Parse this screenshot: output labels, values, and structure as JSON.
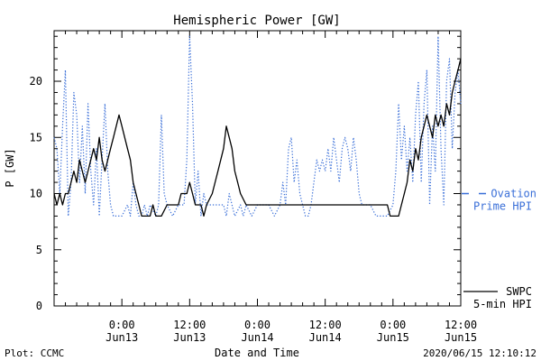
{
  "chart_data": {
    "type": "line",
    "title": "Hemispheric Power [GW]",
    "xlabel": "Date and Time",
    "ylabel": "P [GW]",
    "ylim": [
      0,
      24.5
    ],
    "y_ticks": [
      0,
      5,
      10,
      15,
      20
    ],
    "x_range": [
      "2020-06-12 12:00",
      "2020-06-15 12:00"
    ],
    "x_ticks": [
      {
        "t": "2020-06-13 00:00",
        "time": "0:00",
        "date": "Jun13"
      },
      {
        "t": "2020-06-13 12:00",
        "time": "12:00",
        "date": "Jun13"
      },
      {
        "t": "2020-06-14 00:00",
        "time": "0:00",
        "date": "Jun14"
      },
      {
        "t": "2020-06-14 12:00",
        "time": "12:00",
        "date": "Jun14"
      },
      {
        "t": "2020-06-15 00:00",
        "time": "0:00",
        "date": "Jun15"
      },
      {
        "t": "2020-06-15 12:00",
        "time": "12:00",
        "date": "Jun15"
      }
    ],
    "grid": false,
    "legend_placement": "right",
    "series": [
      {
        "name": "SWPC 5-min HPI",
        "legend_lines": [
          "SWPC",
          "5-min HPI"
        ],
        "color": "#000000",
        "style": "solid",
        "points": [
          [
            "2020-06-12 12:00",
            10
          ],
          [
            "2020-06-12 12:30",
            9
          ],
          [
            "2020-06-12 13:00",
            10
          ],
          [
            "2020-06-12 13:30",
            9
          ],
          [
            "2020-06-12 14:00",
            10
          ],
          [
            "2020-06-12 14:30",
            10
          ],
          [
            "2020-06-12 15:00",
            11
          ],
          [
            "2020-06-12 15:30",
            12
          ],
          [
            "2020-06-12 16:00",
            11
          ],
          [
            "2020-06-12 16:30",
            13
          ],
          [
            "2020-06-12 17:00",
            12
          ],
          [
            "2020-06-12 17:30",
            11
          ],
          [
            "2020-06-12 18:00",
            12
          ],
          [
            "2020-06-12 18:30",
            13
          ],
          [
            "2020-06-12 19:00",
            14
          ],
          [
            "2020-06-12 19:30",
            13
          ],
          [
            "2020-06-12 20:00",
            15
          ],
          [
            "2020-06-12 20:30",
            13
          ],
          [
            "2020-06-12 21:00",
            12
          ],
          [
            "2020-06-12 21:30",
            13
          ],
          [
            "2020-06-12 22:00",
            14
          ],
          [
            "2020-06-12 22:30",
            15
          ],
          [
            "2020-06-12 23:00",
            16
          ],
          [
            "2020-06-12 23:30",
            17
          ],
          [
            "2020-06-13 00:00",
            16
          ],
          [
            "2020-06-13 00:30",
            15
          ],
          [
            "2020-06-13 01:00",
            14
          ],
          [
            "2020-06-13 01:30",
            13
          ],
          [
            "2020-06-13 02:00",
            11
          ],
          [
            "2020-06-13 02:30",
            10
          ],
          [
            "2020-06-13 03:00",
            9
          ],
          [
            "2020-06-13 03:30",
            8
          ],
          [
            "2020-06-13 05:00",
            8
          ],
          [
            "2020-06-13 05:30",
            9
          ],
          [
            "2020-06-13 06:00",
            8
          ],
          [
            "2020-06-13 07:00",
            8
          ],
          [
            "2020-06-13 08:00",
            9
          ],
          [
            "2020-06-13 09:00",
            9
          ],
          [
            "2020-06-13 10:00",
            9
          ],
          [
            "2020-06-13 10:30",
            10
          ],
          [
            "2020-06-13 11:30",
            10
          ],
          [
            "2020-06-13 12:00",
            11
          ],
          [
            "2020-06-13 12:30",
            10
          ],
          [
            "2020-06-13 13:00",
            9
          ],
          [
            "2020-06-13 14:00",
            9
          ],
          [
            "2020-06-13 14:30",
            8
          ],
          [
            "2020-06-13 15:00",
            9
          ],
          [
            "2020-06-13 16:00",
            10
          ],
          [
            "2020-06-13 17:00",
            12
          ],
          [
            "2020-06-13 18:00",
            14
          ],
          [
            "2020-06-13 18:30",
            16
          ],
          [
            "2020-06-13 19:00",
            15
          ],
          [
            "2020-06-13 19:30",
            14
          ],
          [
            "2020-06-13 20:00",
            12
          ],
          [
            "2020-06-13 20:30",
            11
          ],
          [
            "2020-06-13 21:00",
            10
          ],
          [
            "2020-06-13 22:00",
            9
          ],
          [
            "2020-06-13 23:00",
            9
          ],
          [
            "2020-06-14 00:00",
            9
          ],
          [
            "2020-06-14 06:00",
            9
          ],
          [
            "2020-06-14 12:00",
            9
          ],
          [
            "2020-06-14 18:00",
            9
          ],
          [
            "2020-06-14 23:00",
            9
          ],
          [
            "2020-06-14 23:30",
            8
          ],
          [
            "2020-06-15 00:30",
            8
          ],
          [
            "2020-06-15 01:00",
            8
          ],
          [
            "2020-06-15 01:30",
            9
          ],
          [
            "2020-06-15 02:00",
            10
          ],
          [
            "2020-06-15 02:30",
            11
          ],
          [
            "2020-06-15 03:00",
            13
          ],
          [
            "2020-06-15 03:30",
            12
          ],
          [
            "2020-06-15 04:00",
            14
          ],
          [
            "2020-06-15 04:30",
            13
          ],
          [
            "2020-06-15 05:00",
            15
          ],
          [
            "2020-06-15 05:30",
            16
          ],
          [
            "2020-06-15 06:00",
            17
          ],
          [
            "2020-06-15 06:30",
            16
          ],
          [
            "2020-06-15 07:00",
            15
          ],
          [
            "2020-06-15 07:30",
            17
          ],
          [
            "2020-06-15 08:00",
            16
          ],
          [
            "2020-06-15 08:30",
            17
          ],
          [
            "2020-06-15 09:00",
            16
          ],
          [
            "2020-06-15 09:30",
            18
          ],
          [
            "2020-06-15 10:00",
            17
          ],
          [
            "2020-06-15 10:30",
            19
          ],
          [
            "2020-06-15 11:00",
            20
          ],
          [
            "2020-06-15 11:30",
            21
          ],
          [
            "2020-06-15 12:00",
            22
          ]
        ]
      },
      {
        "name": "Ovation Prime HPI",
        "legend_lines": [
          "Ovation",
          "Prime HPI"
        ],
        "color": "#3a6fd8",
        "style": "dotted",
        "points": [
          [
            "2020-06-12 12:00",
            15
          ],
          [
            "2020-06-12 12:30",
            14
          ],
          [
            "2020-06-12 13:00",
            10
          ],
          [
            "2020-06-12 13:30",
            16
          ],
          [
            "2020-06-12 14:00",
            21
          ],
          [
            "2020-06-12 14:30",
            8
          ],
          [
            "2020-06-12 15:00",
            11
          ],
          [
            "2020-06-12 15:30",
            19
          ],
          [
            "2020-06-12 16:00",
            17
          ],
          [
            "2020-06-12 16:30",
            11
          ],
          [
            "2020-06-12 17:00",
            16
          ],
          [
            "2020-06-12 17:30",
            10
          ],
          [
            "2020-06-12 18:00",
            18
          ],
          [
            "2020-06-12 18:30",
            12
          ],
          [
            "2020-06-12 19:00",
            9
          ],
          [
            "2020-06-12 19:30",
            14
          ],
          [
            "2020-06-12 20:00",
            8
          ],
          [
            "2020-06-12 20:30",
            13
          ],
          [
            "2020-06-12 21:00",
            18
          ],
          [
            "2020-06-12 21:30",
            12
          ],
          [
            "2020-06-12 22:00",
            9
          ],
          [
            "2020-06-12 22:30",
            8
          ],
          [
            "2020-06-12 23:00",
            8
          ],
          [
            "2020-06-12 23:30",
            8
          ],
          [
            "2020-06-13 00:00",
            8
          ],
          [
            "2020-06-13 01:00",
            9
          ],
          [
            "2020-06-13 01:30",
            8
          ],
          [
            "2020-06-13 02:00",
            11
          ],
          [
            "2020-06-13 02:30",
            9
          ],
          [
            "2020-06-13 03:00",
            8
          ],
          [
            "2020-06-13 03:30",
            8
          ],
          [
            "2020-06-13 04:00",
            9
          ],
          [
            "2020-06-13 04:30",
            8
          ],
          [
            "2020-06-13 05:00",
            9
          ],
          [
            "2020-06-13 06:00",
            8
          ],
          [
            "2020-06-13 06:30",
            9
          ],
          [
            "2020-06-13 07:00",
            17
          ],
          [
            "2020-06-13 07:30",
            10
          ],
          [
            "2020-06-13 08:00",
            9
          ],
          [
            "2020-06-13 09:00",
            8
          ],
          [
            "2020-06-13 10:00",
            9
          ],
          [
            "2020-06-13 11:00",
            9
          ],
          [
            "2020-06-13 11:30",
            13
          ],
          [
            "2020-06-13 12:00",
            24
          ],
          [
            "2020-06-13 12:30",
            18
          ],
          [
            "2020-06-13 13:00",
            9
          ],
          [
            "2020-06-13 13:30",
            12
          ],
          [
            "2020-06-13 14:00",
            8
          ],
          [
            "2020-06-13 14:30",
            10
          ],
          [
            "2020-06-13 15:00",
            9
          ],
          [
            "2020-06-13 15:30",
            9
          ],
          [
            "2020-06-13 16:00",
            9
          ],
          [
            "2020-06-13 17:00",
            9
          ],
          [
            "2020-06-13 18:00",
            9
          ],
          [
            "2020-06-13 18:30",
            8
          ],
          [
            "2020-06-13 19:00",
            10
          ],
          [
            "2020-06-13 19:30",
            9
          ],
          [
            "2020-06-13 20:00",
            8
          ],
          [
            "2020-06-13 21:00",
            9
          ],
          [
            "2020-06-13 21:30",
            8
          ],
          [
            "2020-06-13 22:00",
            9
          ],
          [
            "2020-06-13 23:00",
            8
          ],
          [
            "2020-06-14 00:00",
            9
          ],
          [
            "2020-06-14 01:00",
            9
          ],
          [
            "2020-06-14 02:00",
            9
          ],
          [
            "2020-06-14 03:00",
            8
          ],
          [
            "2020-06-14 04:00",
            9
          ],
          [
            "2020-06-14 04:30",
            11
          ],
          [
            "2020-06-14 05:00",
            9
          ],
          [
            "2020-06-14 05:30",
            14
          ],
          [
            "2020-06-14 06:00",
            15
          ],
          [
            "2020-06-14 06:30",
            11
          ],
          [
            "2020-06-14 07:00",
            13
          ],
          [
            "2020-06-14 07:30",
            10
          ],
          [
            "2020-06-14 08:00",
            9
          ],
          [
            "2020-06-14 08:30",
            8
          ],
          [
            "2020-06-14 09:00",
            8
          ],
          [
            "2020-06-14 09:30",
            9
          ],
          [
            "2020-06-14 10:00",
            11
          ],
          [
            "2020-06-14 10:30",
            13
          ],
          [
            "2020-06-14 11:00",
            12
          ],
          [
            "2020-06-14 11:30",
            13
          ],
          [
            "2020-06-14 12:00",
            12
          ],
          [
            "2020-06-14 12:30",
            14
          ],
          [
            "2020-06-14 13:00",
            12
          ],
          [
            "2020-06-14 13:30",
            15
          ],
          [
            "2020-06-14 14:00",
            13
          ],
          [
            "2020-06-14 14:30",
            11
          ],
          [
            "2020-06-14 15:00",
            14
          ],
          [
            "2020-06-14 15:30",
            15
          ],
          [
            "2020-06-14 16:00",
            14
          ],
          [
            "2020-06-14 16:30",
            12
          ],
          [
            "2020-06-14 17:00",
            15
          ],
          [
            "2020-06-14 17:30",
            13
          ],
          [
            "2020-06-14 18:00",
            10
          ],
          [
            "2020-06-14 18:30",
            9
          ],
          [
            "2020-06-14 19:00",
            9
          ],
          [
            "2020-06-14 20:00",
            9
          ],
          [
            "2020-06-14 21:00",
            8
          ],
          [
            "2020-06-14 22:00",
            8
          ],
          [
            "2020-06-14 23:00",
            8
          ],
          [
            "2020-06-15 00:00",
            9
          ],
          [
            "2020-06-15 00:30",
            12
          ],
          [
            "2020-06-15 01:00",
            18
          ],
          [
            "2020-06-15 01:30",
            13
          ],
          [
            "2020-06-15 02:00",
            16
          ],
          [
            "2020-06-15 02:30",
            12
          ],
          [
            "2020-06-15 03:00",
            15
          ],
          [
            "2020-06-15 03:30",
            11
          ],
          [
            "2020-06-15 04:00",
            17
          ],
          [
            "2020-06-15 04:30",
            20
          ],
          [
            "2020-06-15 05:00",
            11
          ],
          [
            "2020-06-15 05:30",
            18
          ],
          [
            "2020-06-15 06:00",
            21
          ],
          [
            "2020-06-15 06:30",
            9
          ],
          [
            "2020-06-15 07:00",
            16
          ],
          [
            "2020-06-15 07:30",
            12
          ],
          [
            "2020-06-15 08:00",
            24
          ],
          [
            "2020-06-15 08:30",
            14
          ],
          [
            "2020-06-15 09:00",
            9
          ],
          [
            "2020-06-15 09:30",
            20
          ],
          [
            "2020-06-15 10:00",
            22
          ],
          [
            "2020-06-15 10:30",
            14
          ],
          [
            "2020-06-15 11:00",
            19
          ],
          [
            "2020-06-15 11:30",
            21
          ],
          [
            "2020-06-15 12:00",
            18
          ]
        ]
      }
    ]
  },
  "footer": {
    "plot_credit": "Plot: CCMC",
    "timestamp": "2020/06/15 12:10:12"
  }
}
